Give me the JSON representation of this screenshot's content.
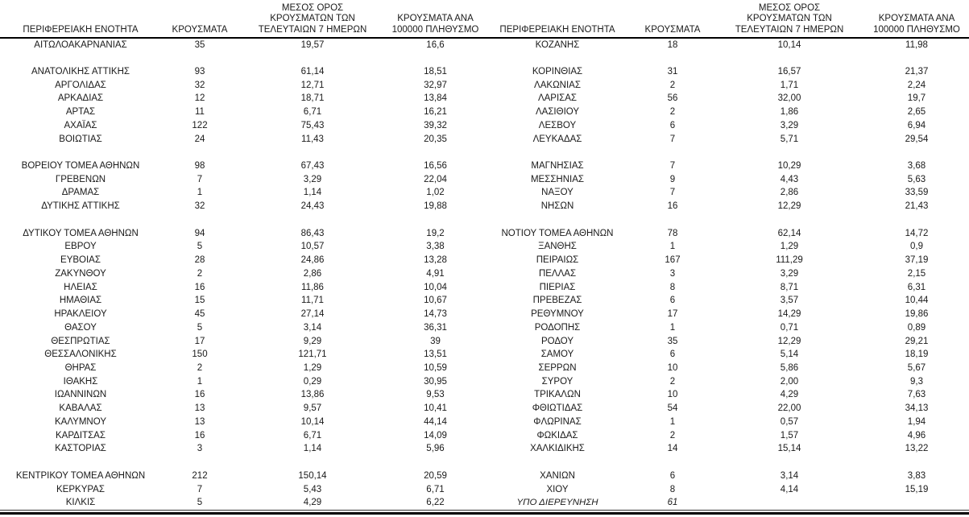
{
  "columns": {
    "region": "ΠΕΡΙΦΕΡΕΙΑΚΗ ΕΝΟΤΗΤΑ",
    "cases": "ΚΡΟΥΣΜΑΤΑ",
    "avg7": "ΜΕΣΟΣ ΟΡΟΣ\nΚΡΟΥΣΜΑΤΩΝ ΤΩΝ\nΤΕΛΕΥΤΑΙΩΝ 7 ΗΜΕΡΩΝ",
    "per100k": "ΚΡΟΥΣΜΑΤΑ ΑΝΑ\n100000 ΠΛΗΘΥΣΜΟ"
  },
  "styles": {
    "text_color": "#1a1a1a",
    "rule_color": "#000000"
  },
  "tables": [
    {
      "rows": [
        [
          "ΑΙΤΩΛΟΑΚΑΡΝΑΝΙΑΣ",
          "35",
          "19,57",
          "16,6"
        ],
        null,
        [
          "ΑΝΑΤΟΛΙΚΗΣ ΑΤΤΙΚΗΣ",
          "93",
          "61,14",
          "18,51"
        ],
        [
          "ΑΡΓΟΛΙΔΑΣ",
          "32",
          "12,71",
          "32,97"
        ],
        [
          "ΑΡΚΑΔΙΑΣ",
          "12",
          "18,71",
          "13,84"
        ],
        [
          "ΑΡΤΑΣ",
          "11",
          "6,71",
          "16,21"
        ],
        [
          "ΑΧΑΪΑΣ",
          "122",
          "75,43",
          "39,32"
        ],
        [
          "ΒΟΙΩΤΙΑΣ",
          "24",
          "11,43",
          "20,35"
        ],
        null,
        [
          "ΒΟΡΕΙΟΥ ΤΟΜΕΑ ΑΘΗΝΩΝ",
          "98",
          "67,43",
          "16,56"
        ],
        [
          "ΓΡΕΒΕΝΩΝ",
          "7",
          "3,29",
          "22,04"
        ],
        [
          "ΔΡΑΜΑΣ",
          "1",
          "1,14",
          "1,02"
        ],
        [
          "ΔΥΤΙΚΗΣ ΑΤΤΙΚΗΣ",
          "32",
          "24,43",
          "19,88"
        ],
        null,
        [
          "ΔΥΤΙΚΟΥ ΤΟΜΕΑ ΑΘΗΝΩΝ",
          "94",
          "86,43",
          "19,2"
        ],
        [
          "ΕΒΡΟΥ",
          "5",
          "10,57",
          "3,38"
        ],
        [
          "ΕΥΒΟΙΑΣ",
          "28",
          "24,86",
          "13,28"
        ],
        [
          "ΖΑΚΥΝΘΟΥ",
          "2",
          "2,86",
          "4,91"
        ],
        [
          "ΗΛΕΙΑΣ",
          "16",
          "11,86",
          "10,04"
        ],
        [
          "ΗΜΑΘΙΑΣ",
          "15",
          "11,71",
          "10,67"
        ],
        [
          "ΗΡΑΚΛΕΙΟΥ",
          "45",
          "27,14",
          "14,73"
        ],
        [
          "ΘΑΣΟΥ",
          "5",
          "3,14",
          "36,31"
        ],
        [
          "ΘΕΣΠΡΩΤΙΑΣ",
          "17",
          "9,29",
          "39"
        ],
        [
          "ΘΕΣΣΑΛΟΝΙΚΗΣ",
          "150",
          "121,71",
          "13,51"
        ],
        [
          "ΘΗΡΑΣ",
          "2",
          "1,29",
          "10,59"
        ],
        [
          "ΙΘΑΚΗΣ",
          "1",
          "0,29",
          "30,95"
        ],
        [
          "ΙΩΑΝΝΙΝΩΝ",
          "16",
          "13,86",
          "9,53"
        ],
        [
          "ΚΑΒΑΛΑΣ",
          "13",
          "9,57",
          "10,41"
        ],
        [
          "ΚΑΛΥΜΝΟΥ",
          "13",
          "10,14",
          "44,14"
        ],
        [
          "ΚΑΡΔΙΤΣΑΣ",
          "16",
          "6,71",
          "14,09"
        ],
        [
          "ΚΑΣΤΟΡΙΑΣ",
          "3",
          "1,14",
          "5,96"
        ],
        null,
        [
          "ΚΕΝΤΡΙΚΟΥ ΤΟΜΕΑ ΑΘΗΝΩΝ",
          "212",
          "150,14",
          "20,59"
        ],
        [
          "ΚΕΡΚΥΡΑΣ",
          "7",
          "5,43",
          "6,71"
        ],
        [
          "ΚΙΛΚΙΣ",
          "5",
          "4,29",
          "6,22"
        ]
      ]
    },
    {
      "rows": [
        [
          "ΚΟΖΑΝΗΣ",
          "18",
          "10,14",
          "11,98"
        ],
        null,
        [
          "ΚΟΡΙΝΘΙΑΣ",
          "31",
          "16,57",
          "21,37"
        ],
        [
          "ΛΑΚΩΝΙΑΣ",
          "2",
          "1,71",
          "2,24"
        ],
        [
          "ΛΑΡΙΣΑΣ",
          "56",
          "32,00",
          "19,7"
        ],
        [
          "ΛΑΣΙΘΙΟΥ",
          "2",
          "1,86",
          "2,65"
        ],
        [
          "ΛΕΣΒΟΥ",
          "6",
          "3,29",
          "6,94"
        ],
        [
          "ΛΕΥΚΑΔΑΣ",
          "7",
          "5,71",
          "29,54"
        ],
        null,
        [
          "ΜΑΓΝΗΣΙΑΣ",
          "7",
          "10,29",
          "3,68"
        ],
        [
          "ΜΕΣΣΗΝΙΑΣ",
          "9",
          "4,43",
          "5,63"
        ],
        [
          "ΝΑΞΟΥ",
          "7",
          "2,86",
          "33,59"
        ],
        [
          "ΝΗΣΩΝ",
          "16",
          "12,29",
          "21,43"
        ],
        null,
        [
          "ΝΟΤΙΟΥ ΤΟΜΕΑ ΑΘΗΝΩΝ",
          "78",
          "62,14",
          "14,72"
        ],
        [
          "ΞΑΝΘΗΣ",
          "1",
          "1,29",
          "0,9"
        ],
        [
          "ΠΕΙΡΑΙΩΣ",
          "167",
          "111,29",
          "37,19"
        ],
        [
          "ΠΕΛΛΑΣ",
          "3",
          "3,29",
          "2,15"
        ],
        [
          "ΠΙΕΡΙΑΣ",
          "8",
          "8,71",
          "6,31"
        ],
        [
          "ΠΡΕΒΕΖΑΣ",
          "6",
          "3,57",
          "10,44"
        ],
        [
          "ΡΕΘΥΜΝΟΥ",
          "17",
          "14,29",
          "19,86"
        ],
        [
          "ΡΟΔΟΠΗΣ",
          "1",
          "0,71",
          "0,89"
        ],
        [
          "ΡΟΔΟΥ",
          "35",
          "12,29",
          "29,21"
        ],
        [
          "ΣΑΜΟΥ",
          "6",
          "5,14",
          "18,19"
        ],
        [
          "ΣΕΡΡΩΝ",
          "10",
          "5,86",
          "5,67"
        ],
        [
          "ΣΥΡΟΥ",
          "2",
          "2,00",
          "9,3"
        ],
        [
          "ΤΡΙΚΑΛΩΝ",
          "10",
          "4,29",
          "7,63"
        ],
        [
          "ΦΘΙΩΤΙΔΑΣ",
          "54",
          "22,00",
          "34,13"
        ],
        [
          "ΦΛΩΡΙΝΑΣ",
          "1",
          "0,57",
          "1,94"
        ],
        [
          "ΦΩΚΙΔΑΣ",
          "2",
          "1,57",
          "4,96"
        ],
        [
          "ΧΑΛΚΙΔΙΚΗΣ",
          "14",
          "15,14",
          "13,22"
        ],
        null,
        [
          "ΧΑΝΙΩΝ",
          "6",
          "3,14",
          "3,83"
        ],
        [
          "ΧΙΟΥ",
          "8",
          "4,14",
          "15,19"
        ],
        {
          "cells": [
            "ΥΠΟ ΔΙΕΡΕΥΝΗΣΗ",
            "61",
            "",
            ""
          ],
          "italic": true
        }
      ]
    }
  ]
}
